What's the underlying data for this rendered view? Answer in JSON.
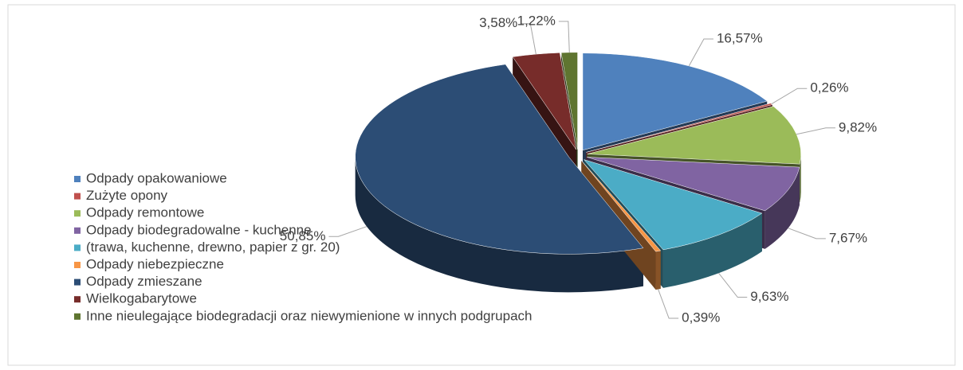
{
  "chart_data": {
    "type": "pie",
    "three_d": true,
    "exploded": true,
    "legend": "left",
    "categories": [
      "Odpady opakowaniowe",
      "Zużyte opony",
      "Odpady remontowe",
      "Odpady biodegradowalne - kuchenne",
      "(trawa, kuchenne, drewno, papier z gr. 20)",
      "Odpady niebezpieczne",
      "Odpady zmieszane",
      "Wielkogabarytowe",
      "Inne nieulegające biodegradacji oraz niewymienione w innych podgrupach"
    ],
    "values": [
      16.57,
      0.26,
      9.82,
      7.67,
      9.63,
      0.39,
      50.85,
      3.58,
      1.22
    ],
    "value_labels": [
      "16,57%",
      "0,26%",
      "9,82%",
      "7,67%",
      "9,63%",
      "0,39%",
      "50,85%",
      "3,58%",
      "1,22%"
    ],
    "colors": [
      "#4f81bd",
      "#c0504d",
      "#9bbb59",
      "#8064a2",
      "#4bacc6",
      "#f79646",
      "#2c4d75",
      "#772c2a",
      "#5f7530"
    ]
  }
}
